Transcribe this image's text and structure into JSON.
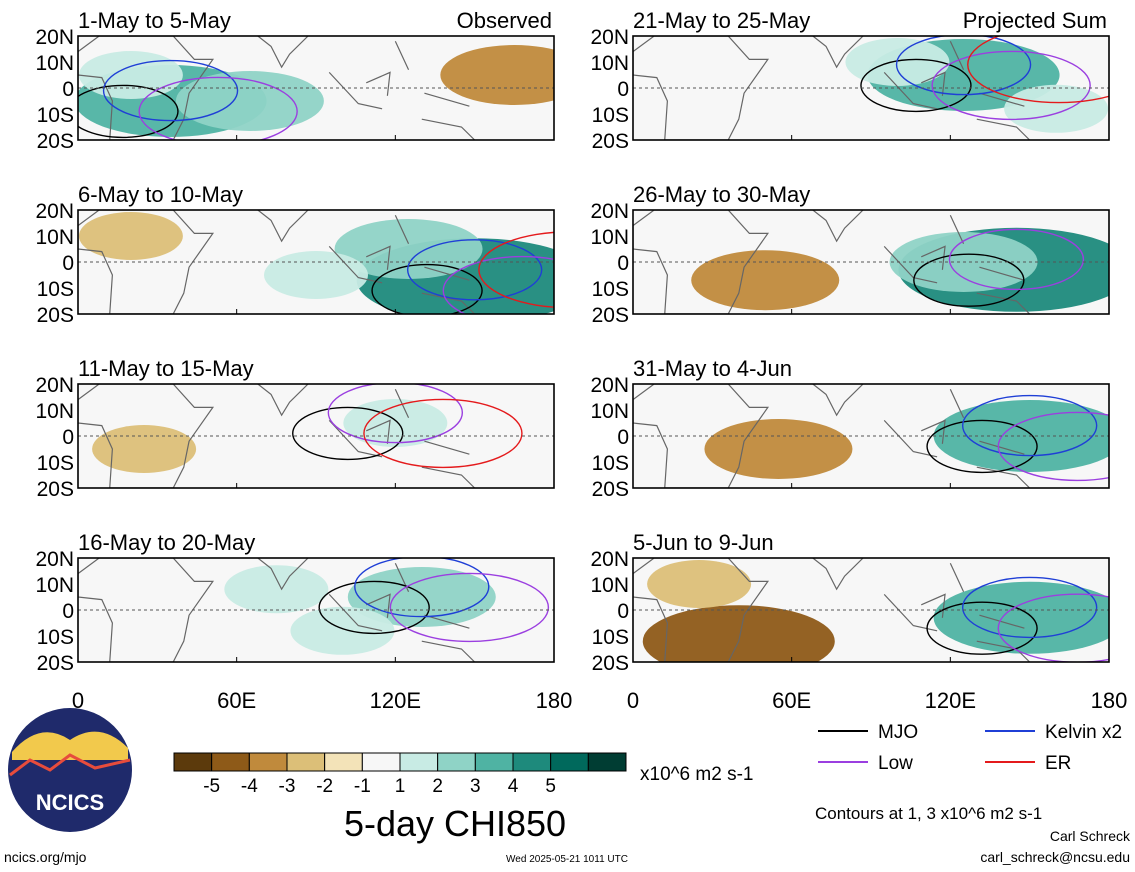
{
  "panel_labels": {
    "observed": "Observed",
    "projected": "Projected Sum"
  },
  "lat_labels": [
    "20N",
    "10N",
    "0",
    "10S",
    "20S"
  ],
  "lon_labels": [
    "0",
    "60E",
    "120E",
    "180"
  ],
  "colorbar": {
    "tick_labels": [
      "-5",
      "-4",
      "-3",
      "-2",
      "-1",
      "1",
      "2",
      "3",
      "4",
      "5"
    ],
    "units": "x10^6 m2 s-1",
    "colors": [
      "#5c3a0c",
      "#8e5a18",
      "#c08a3c",
      "#dcbf78",
      "#f3e3b8",
      "#f7f7f7",
      "#c8ebe4",
      "#8fd3c6",
      "#4fb3a3",
      "#1e8a7c",
      "#00695c",
      "#003d33"
    ],
    "title": "5-day CHI850"
  },
  "legend": {
    "items": [
      {
        "label": "MJO",
        "color": "#000000"
      },
      {
        "label": "Kelvin x2",
        "color": "#1f3fd6"
      },
      {
        "label": "Low",
        "color": "#9b3fe0"
      },
      {
        "label": "ER",
        "color": "#e41a1c"
      }
    ],
    "contour_note": "Contours at 1, 3 x10^6 m2 s-1"
  },
  "footer": {
    "logo_text": "NCICS",
    "url": "ncics.org/mjo",
    "timestamp": "Wed 2025-05-21 1011 UTC",
    "author": "Carl Schreck",
    "email": "carl_schreck@ncsu.edu"
  },
  "chart_data": [
    {
      "type": "heatmap",
      "title": "1-May to 5-May",
      "label": "Observed",
      "variable": "5-day CHI850",
      "units": "x10^6 m2 s-1",
      "xlim": [
        0,
        180
      ],
      "ylim": [
        -20,
        20
      ],
      "x_ticks": [
        "0",
        "60E",
        "120E",
        "180"
      ],
      "y_ticks": [
        "20N",
        "10N",
        "0",
        "10S",
        "20S"
      ],
      "regions": [
        {
          "lon": 35,
          "lat": -5,
          "value": 3
        },
        {
          "lon": 65,
          "lat": -5,
          "value": 2
        },
        {
          "lon": 20,
          "lat": 5,
          "value": 1
        },
        {
          "lon": 165,
          "lat": 5,
          "value": -2
        }
      ],
      "contours": [
        "MJO",
        "Kelvin x2",
        "Low"
      ]
    },
    {
      "type": "heatmap",
      "title": "6-May to 10-May",
      "variable": "5-day CHI850",
      "units": "x10^6 m2 s-1",
      "xlim": [
        0,
        180
      ],
      "ylim": [
        -20,
        20
      ],
      "x_ticks": [
        "0",
        "60E",
        "120E",
        "180"
      ],
      "y_ticks": [
        "20N",
        "10N",
        "0",
        "10S",
        "20S"
      ],
      "regions": [
        {
          "lon": 150,
          "lat": -7,
          "value": 4
        },
        {
          "lon": 125,
          "lat": 5,
          "value": 2
        },
        {
          "lon": 90,
          "lat": -5,
          "value": 1
        },
        {
          "lon": 20,
          "lat": 10,
          "value": -1
        }
      ],
      "contours": [
        "MJO",
        "Kelvin x2",
        "Low",
        "ER"
      ]
    },
    {
      "type": "heatmap",
      "title": "11-May to 15-May",
      "variable": "5-day CHI850",
      "units": "x10^6 m2 s-1",
      "xlim": [
        0,
        180
      ],
      "ylim": [
        -20,
        20
      ],
      "x_ticks": [
        "0",
        "60E",
        "120E",
        "180"
      ],
      "y_ticks": [
        "20N",
        "10N",
        "0",
        "10S",
        "20S"
      ],
      "regions": [
        {
          "lon": 120,
          "lat": 5,
          "value": 1
        },
        {
          "lon": 25,
          "lat": -5,
          "value": -1
        }
      ],
      "contours": [
        "MJO",
        "Low",
        "ER"
      ]
    },
    {
      "type": "heatmap",
      "title": "16-May to 20-May",
      "variable": "5-day CHI850",
      "units": "x10^6 m2 s-1",
      "xlim": [
        0,
        180
      ],
      "ylim": [
        -20,
        20
      ],
      "x_ticks": [
        "0",
        "60E",
        "120E",
        "180"
      ],
      "y_ticks": [
        "20N",
        "10N",
        "0",
        "10S",
        "20S"
      ],
      "regions": [
        {
          "lon": 130,
          "lat": 5,
          "value": 2
        },
        {
          "lon": 75,
          "lat": 8,
          "value": 1
        },
        {
          "lon": 100,
          "lat": -8,
          "value": 1
        }
      ],
      "contours": [
        "MJO",
        "Kelvin x2",
        "Low"
      ]
    },
    {
      "type": "heatmap",
      "title": "21-May to 25-May",
      "label": "Projected Sum",
      "variable": "5-day CHI850",
      "units": "x10^6 m2 s-1",
      "xlim": [
        0,
        180
      ],
      "ylim": [
        -20,
        20
      ],
      "x_ticks": [
        "0",
        "60E",
        "120E",
        "180"
      ],
      "y_ticks": [
        "20N",
        "10N",
        "0",
        "10S",
        "20S"
      ],
      "regions": [
        {
          "lon": 125,
          "lat": 5,
          "value": 3
        },
        {
          "lon": 100,
          "lat": 10,
          "value": 1
        },
        {
          "lon": 160,
          "lat": -8,
          "value": 1
        }
      ],
      "contours": [
        "MJO",
        "Kelvin x2",
        "Low",
        "ER"
      ]
    },
    {
      "type": "heatmap",
      "title": "26-May to 30-May",
      "variable": "5-day CHI850",
      "units": "x10^6 m2 s-1",
      "xlim": [
        0,
        180
      ],
      "ylim": [
        -20,
        20
      ],
      "x_ticks": [
        "0",
        "60E",
        "120E",
        "180"
      ],
      "y_ticks": [
        "20N",
        "10N",
        "0",
        "10S",
        "20S"
      ],
      "regions": [
        {
          "lon": 145,
          "lat": -3,
          "value": 4
        },
        {
          "lon": 125,
          "lat": 0,
          "value": 2
        },
        {
          "lon": 50,
          "lat": -7,
          "value": -2
        }
      ],
      "contours": [
        "MJO",
        "Low"
      ]
    },
    {
      "type": "heatmap",
      "title": "31-May to 4-Jun",
      "variable": "5-day CHI850",
      "units": "x10^6 m2 s-1",
      "xlim": [
        0,
        180
      ],
      "ylim": [
        -20,
        20
      ],
      "x_ticks": [
        "0",
        "60E",
        "120E",
        "180"
      ],
      "y_ticks": [
        "20N",
        "10N",
        "0",
        "10S",
        "20S"
      ],
      "regions": [
        {
          "lon": 150,
          "lat": 0,
          "value": 3
        },
        {
          "lon": 55,
          "lat": -5,
          "value": -2
        }
      ],
      "contours": [
        "MJO",
        "Kelvin x2",
        "Low"
      ]
    },
    {
      "type": "heatmap",
      "title": "5-Jun to 9-Jun",
      "variable": "5-day CHI850",
      "units": "x10^6 m2 s-1",
      "xlim": [
        0,
        180
      ],
      "ylim": [
        -20,
        20
      ],
      "x_ticks": [
        "0",
        "60E",
        "120E",
        "180"
      ],
      "y_ticks": [
        "20N",
        "10N",
        "0",
        "10S",
        "20S"
      ],
      "regions": [
        {
          "lon": 150,
          "lat": -3,
          "value": 3
        },
        {
          "lon": 40,
          "lat": -12,
          "value": -3
        },
        {
          "lon": 25,
          "lat": 10,
          "value": -1
        }
      ],
      "contours": [
        "MJO",
        "Kelvin x2",
        "Low"
      ]
    }
  ]
}
